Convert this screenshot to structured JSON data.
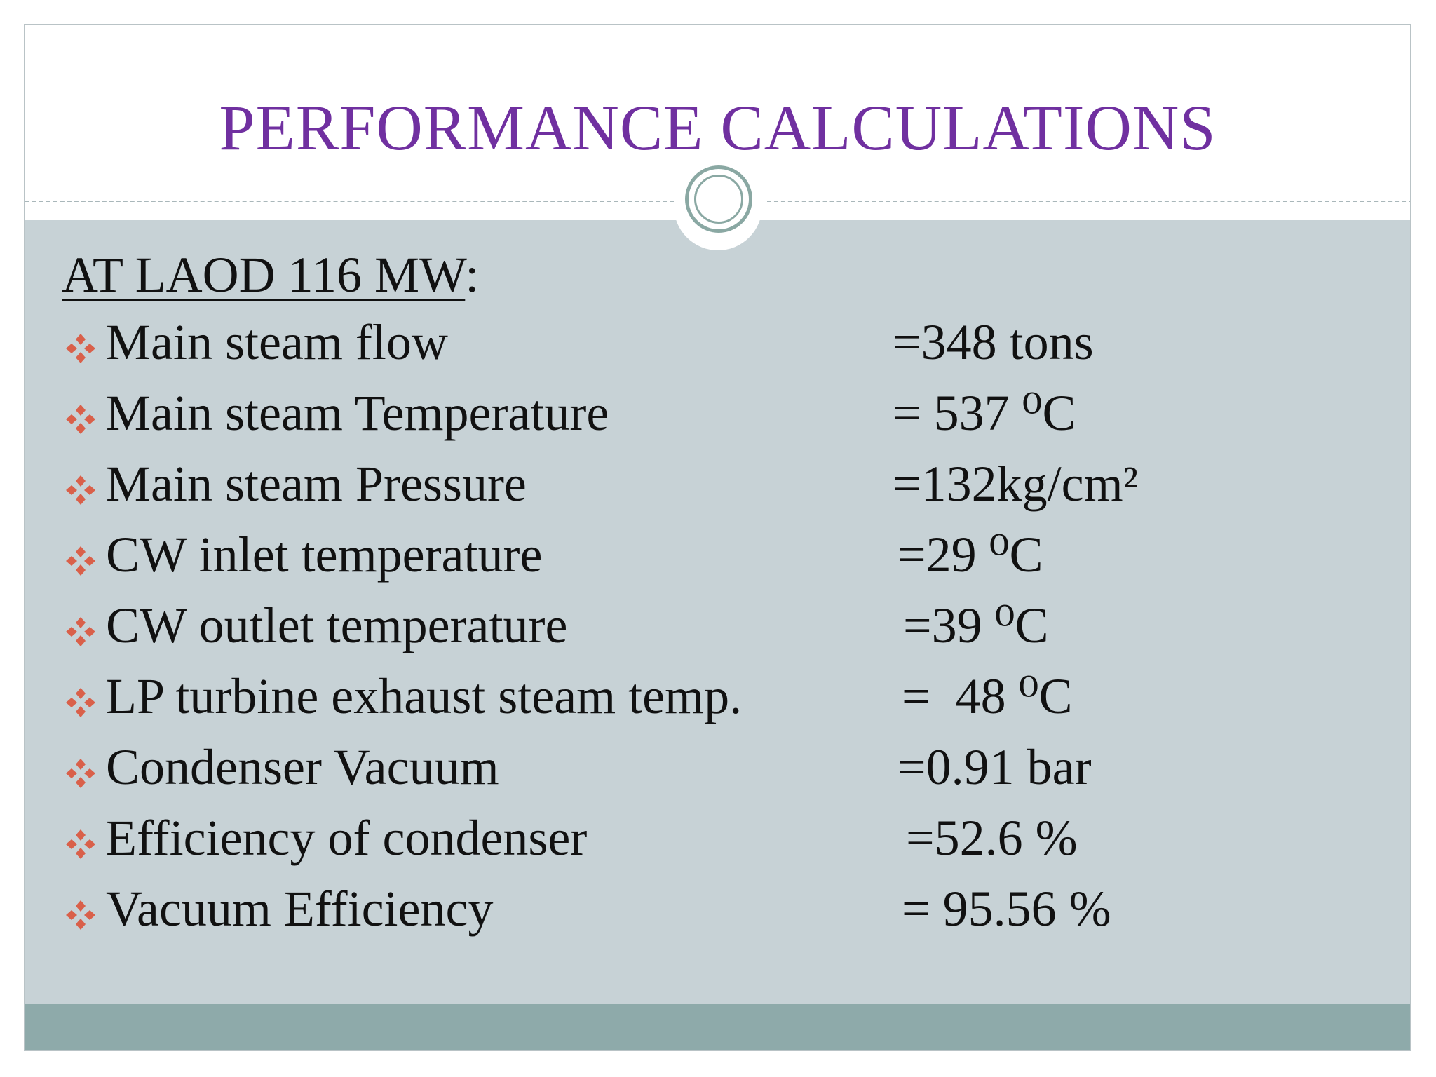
{
  "slide": {
    "title": "PERFORMANCE CALCULATIONS",
    "heading_underlined": "AT LAOD 116 MW",
    "heading_suffix": ":",
    "bullet_icon": "four-diamond-bullet-icon",
    "colors": {
      "title": "#7030a0",
      "panel": "#c7d2d6",
      "footer": "#8eaaaa",
      "bullet": "#d9604a",
      "ring": "#8aa8a3"
    },
    "items": [
      {
        "label": "Main steam flow",
        "value": "=348 tons"
      },
      {
        "label": "Main steam Temperature",
        "value": "= 537 ⁰C"
      },
      {
        "label": "Main steam Pressure",
        "value": "=132kg/cm²"
      },
      {
        "label": "CW inlet temperature",
        "value": "=29 ⁰C"
      },
      {
        "label": "CW outlet temperature",
        "value": "=39 ⁰C"
      },
      {
        "label": "LP turbine exhaust steam temp.",
        "value": "=  48 ⁰C"
      },
      {
        "label": "Condenser Vacuum",
        "value": "=0.91 bar"
      },
      {
        "label": "Efficiency of condenser",
        "value": "=52.6 %"
      },
      {
        "label": "Vacuum Efficiency",
        "value": "= 95.56 %"
      }
    ]
  }
}
